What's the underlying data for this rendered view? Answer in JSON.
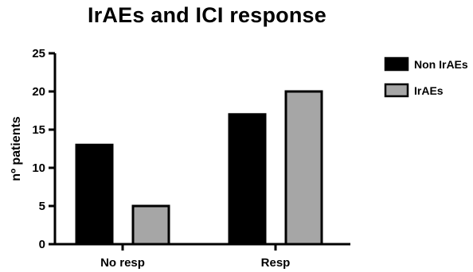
{
  "chart_data": {
    "type": "bar",
    "title": "IrAEs and ICI response",
    "xlabel": "",
    "ylabel": "nº patients",
    "categories": [
      "No resp",
      "Resp"
    ],
    "series": [
      {
        "name": "Non IrAEs",
        "values": [
          13,
          17
        ],
        "color": "#000000"
      },
      {
        "name": "IrAEs",
        "values": [
          5,
          20
        ],
        "color": "#a6a6a6"
      }
    ],
    "ylim": [
      0,
      25
    ],
    "yticks": [
      0,
      5,
      10,
      15,
      20,
      25
    ],
    "legend_position": "top-right",
    "grid": false
  }
}
